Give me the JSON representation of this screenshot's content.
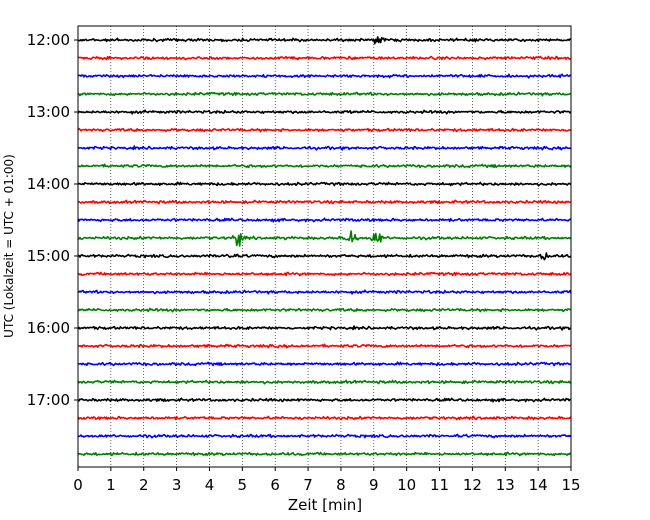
{
  "chart_data": {
    "type": "line",
    "title": "",
    "xlabel": "Zeit  [min]",
    "ylabel": "UTC (Lokalzeit = UTC + 01:00)",
    "xlim": [
      0,
      15
    ],
    "x_ticks": [
      "0",
      "1",
      "2",
      "3",
      "4",
      "5",
      "6",
      "7",
      "8",
      "9",
      "10",
      "11",
      "12",
      "13",
      "14",
      "15"
    ],
    "y_tick_labels": [
      "12:00",
      "13:00",
      "14:00",
      "15:00",
      "16:00",
      "17:00"
    ],
    "grid": "vertical dotted",
    "trace_colors": [
      "#000000",
      "#ff0000",
      "#0000ff",
      "#008000"
    ],
    "traces": [
      {
        "start": "12:00",
        "color": "#000000"
      },
      {
        "start": "12:15",
        "color": "#ff0000"
      },
      {
        "start": "12:30",
        "color": "#0000ff"
      },
      {
        "start": "12:45",
        "color": "#008000"
      },
      {
        "start": "13:00",
        "color": "#000000"
      },
      {
        "start": "13:15",
        "color": "#ff0000"
      },
      {
        "start": "13:30",
        "color": "#0000ff"
      },
      {
        "start": "13:45",
        "color": "#008000"
      },
      {
        "start": "14:00",
        "color": "#000000"
      },
      {
        "start": "14:15",
        "color": "#ff0000"
      },
      {
        "start": "14:30",
        "color": "#0000ff"
      },
      {
        "start": "14:45",
        "color": "#008000"
      },
      {
        "start": "15:00",
        "color": "#000000"
      },
      {
        "start": "15:15",
        "color": "#ff0000"
      },
      {
        "start": "15:30",
        "color": "#0000ff"
      },
      {
        "start": "15:45",
        "color": "#008000"
      },
      {
        "start": "16:00",
        "color": "#000000"
      },
      {
        "start": "16:15",
        "color": "#ff0000"
      },
      {
        "start": "16:30",
        "color": "#0000ff"
      },
      {
        "start": "16:45",
        "color": "#008000"
      },
      {
        "start": "17:00",
        "color": "#000000"
      },
      {
        "start": "17:15",
        "color": "#ff0000"
      },
      {
        "start": "17:30",
        "color": "#0000ff"
      },
      {
        "start": "17:45",
        "color": "#008000"
      }
    ],
    "events": [
      {
        "start": "14:45",
        "minutes": [
          4.9,
          8.3,
          9.1
        ],
        "amplitude": "large"
      },
      {
        "start": "12:00",
        "minutes": [
          9.1
        ],
        "amplitude": "medium"
      },
      {
        "start": "15:00",
        "minutes": [
          4.6,
          14.2
        ],
        "amplitude": "medium"
      }
    ]
  }
}
